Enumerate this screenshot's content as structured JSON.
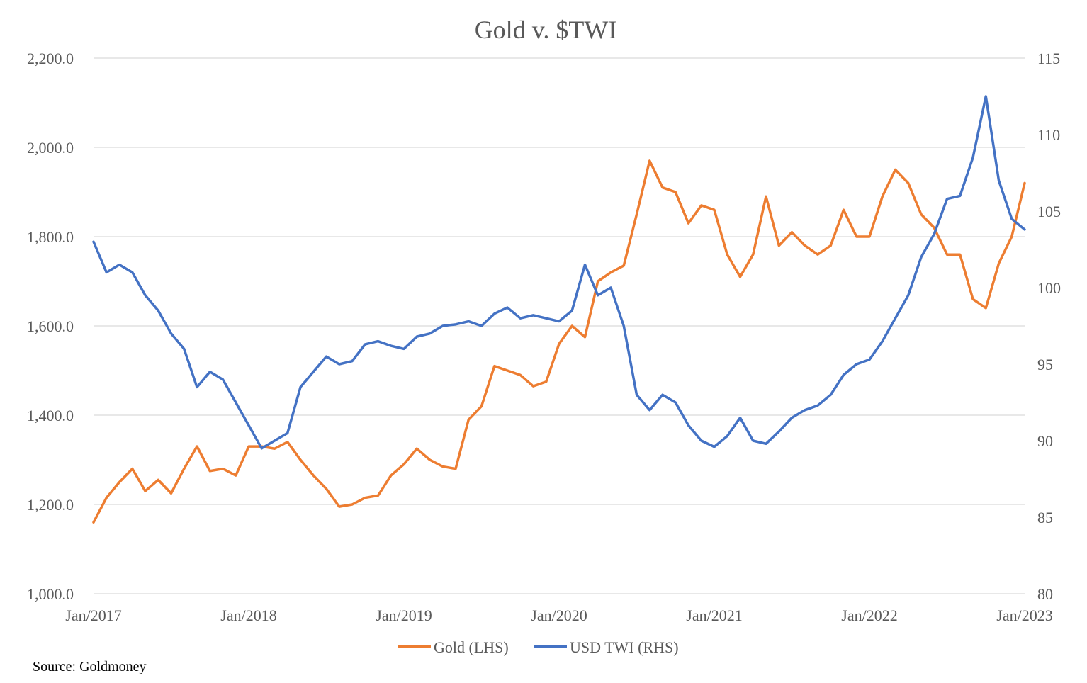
{
  "chart_data": {
    "type": "line",
    "title": "Gold v. $TWI",
    "x_ticks": [
      "Jan/2017",
      "Jan/2018",
      "Jan/2019",
      "Jan/2020",
      "Jan/2021",
      "Jan/2022",
      "Jan/2023"
    ],
    "y_left": {
      "ylim": [
        1000,
        2200
      ],
      "ticks": [
        "1,000.0",
        "1,200.0",
        "1,400.0",
        "1,600.0",
        "1,800.0",
        "2,000.0",
        "2,200.0"
      ]
    },
    "y_right": {
      "ylim": [
        80,
        115
      ],
      "ticks": [
        "80",
        "85",
        "90",
        "95",
        "100",
        "105",
        "110",
        "115"
      ]
    },
    "grid": "horizontal",
    "legend_position": "bottom",
    "series": [
      {
        "name": "Gold (LHS)",
        "axis": "left",
        "color": "#ED7D31",
        "x": [
          "2017-01",
          "2017-02",
          "2017-03",
          "2017-04",
          "2017-05",
          "2017-06",
          "2017-07",
          "2017-08",
          "2017-09",
          "2017-10",
          "2017-11",
          "2017-12",
          "2018-01",
          "2018-02",
          "2018-03",
          "2018-04",
          "2018-05",
          "2018-06",
          "2018-07",
          "2018-08",
          "2018-09",
          "2018-10",
          "2018-11",
          "2018-12",
          "2019-01",
          "2019-02",
          "2019-03",
          "2019-04",
          "2019-05",
          "2019-06",
          "2019-07",
          "2019-08",
          "2019-09",
          "2019-10",
          "2019-11",
          "2019-12",
          "2020-01",
          "2020-02",
          "2020-03",
          "2020-04",
          "2020-05",
          "2020-06",
          "2020-07",
          "2020-08",
          "2020-09",
          "2020-10",
          "2020-11",
          "2020-12",
          "2021-01",
          "2021-02",
          "2021-03",
          "2021-04",
          "2021-05",
          "2021-06",
          "2021-07",
          "2021-08",
          "2021-09",
          "2021-10",
          "2021-11",
          "2021-12",
          "2022-01",
          "2022-02",
          "2022-03",
          "2022-04",
          "2022-05",
          "2022-06",
          "2022-07",
          "2022-08",
          "2022-09",
          "2022-10",
          "2022-11",
          "2022-12",
          "2023-01"
        ],
        "values": [
          1160,
          1215,
          1250,
          1280,
          1230,
          1255,
          1225,
          1280,
          1330,
          1275,
          1280,
          1265,
          1330,
          1330,
          1325,
          1340,
          1300,
          1265,
          1235,
          1195,
          1200,
          1215,
          1220,
          1265,
          1290,
          1325,
          1300,
          1285,
          1280,
          1390,
          1420,
          1510,
          1500,
          1490,
          1465,
          1475,
          1560,
          1600,
          1575,
          1700,
          1720,
          1735,
          1850,
          1970,
          1910,
          1900,
          1830,
          1870,
          1860,
          1760,
          1710,
          1760,
          1890,
          1780,
          1810,
          1780,
          1760,
          1780,
          1860,
          1800,
          1800,
          1890,
          1950,
          1920,
          1850,
          1820,
          1760,
          1760,
          1660,
          1640,
          1740,
          1800,
          1920
        ]
      },
      {
        "name": "USD TWI (RHS)",
        "axis": "right",
        "color": "#4472C4",
        "x": [
          "2017-01",
          "2017-02",
          "2017-03",
          "2017-04",
          "2017-05",
          "2017-06",
          "2017-07",
          "2017-08",
          "2017-09",
          "2017-10",
          "2017-11",
          "2017-12",
          "2018-01",
          "2018-02",
          "2018-03",
          "2018-04",
          "2018-05",
          "2018-06",
          "2018-07",
          "2018-08",
          "2018-09",
          "2018-10",
          "2018-11",
          "2018-12",
          "2019-01",
          "2019-02",
          "2019-03",
          "2019-04",
          "2019-05",
          "2019-06",
          "2019-07",
          "2019-08",
          "2019-09",
          "2019-10",
          "2019-11",
          "2019-12",
          "2020-01",
          "2020-02",
          "2020-03",
          "2020-04",
          "2020-05",
          "2020-06",
          "2020-07",
          "2020-08",
          "2020-09",
          "2020-10",
          "2020-11",
          "2020-12",
          "2021-01",
          "2021-02",
          "2021-03",
          "2021-04",
          "2021-05",
          "2021-06",
          "2021-07",
          "2021-08",
          "2021-09",
          "2021-10",
          "2021-11",
          "2021-12",
          "2022-01",
          "2022-02",
          "2022-03",
          "2022-04",
          "2022-05",
          "2022-06",
          "2022-07",
          "2022-08",
          "2022-09",
          "2022-10",
          "2022-11",
          "2022-12",
          "2023-01"
        ],
        "values": [
          103.0,
          101.0,
          101.5,
          101.0,
          99.5,
          98.5,
          97.0,
          96.0,
          93.5,
          94.5,
          94.0,
          92.5,
          91.0,
          89.5,
          90.0,
          90.5,
          93.5,
          94.5,
          95.5,
          95.0,
          95.2,
          96.3,
          96.5,
          96.2,
          96.0,
          96.8,
          97.0,
          97.5,
          97.6,
          97.8,
          97.5,
          98.3,
          98.7,
          98.0,
          98.2,
          98.0,
          97.8,
          98.5,
          101.5,
          99.5,
          100.0,
          97.5,
          93.0,
          92.0,
          93.0,
          92.5,
          91.0,
          90.0,
          89.6,
          90.3,
          91.5,
          90.0,
          89.8,
          90.6,
          91.5,
          92.0,
          92.3,
          93.0,
          94.3,
          95.0,
          95.3,
          96.5,
          98.0,
          99.5,
          102.0,
          103.5,
          105.8,
          106.0,
          108.5,
          112.5,
          107.0,
          104.5,
          103.8
        ]
      }
    ]
  },
  "source": "Source: Goldmoney"
}
